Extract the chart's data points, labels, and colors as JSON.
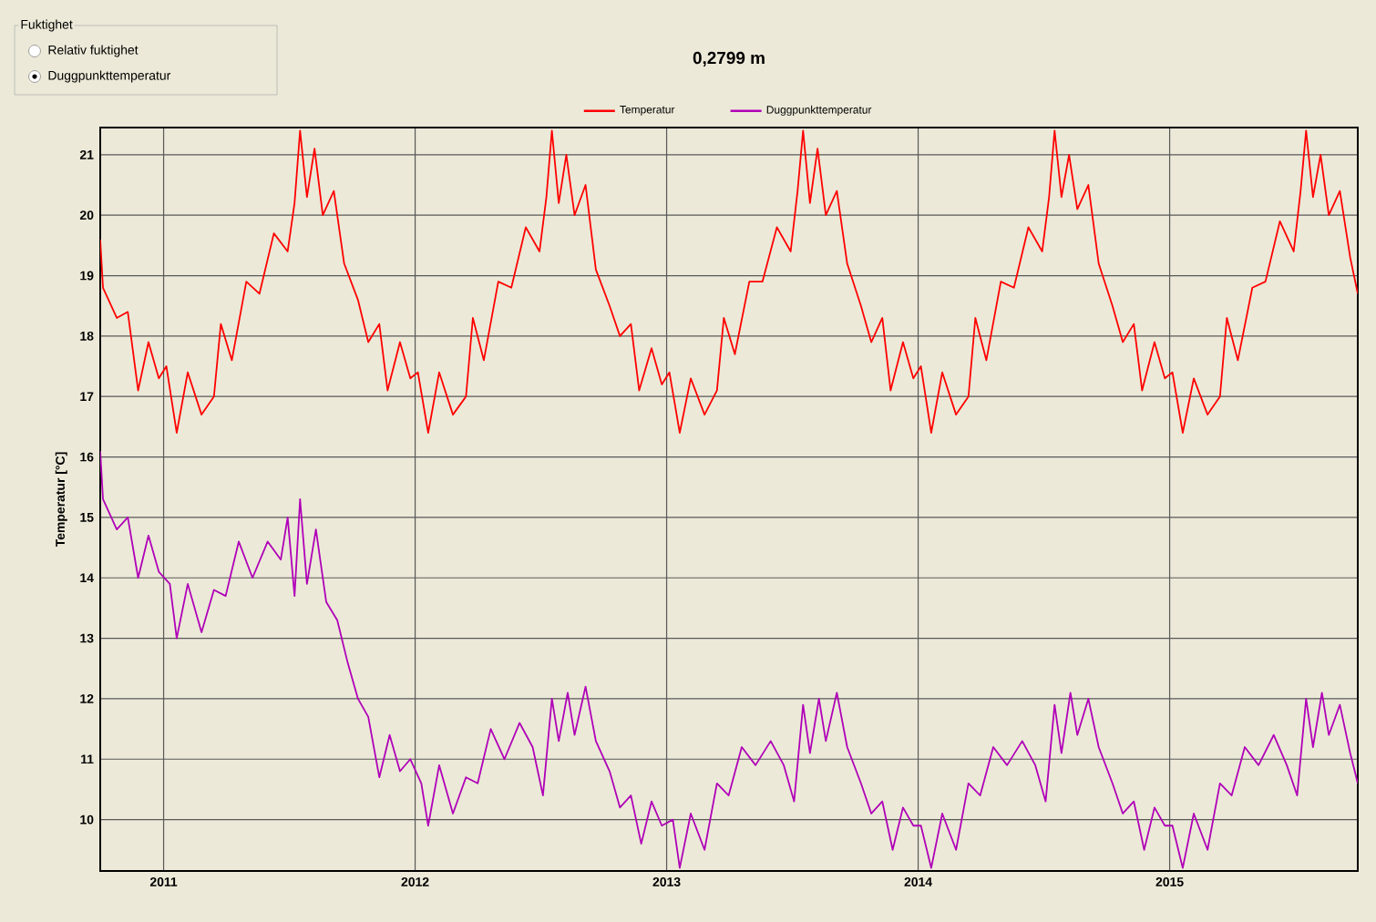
{
  "chart_data": {
    "type": "line",
    "title": "0,2799 m",
    "ylabel": "Temperatur [°C]",
    "annotations": [
      "Fuktighet",
      "Relativ fuktighet",
      "Duggpunkttemperatur"
    ],
    "xlim": [
      "2010-10-01",
      "2015-10-01"
    ],
    "xticks": [
      "2011",
      "2012",
      "2013",
      "2014",
      "2015"
    ],
    "ylim": [
      9.15,
      21.45
    ],
    "yticks": [
      10,
      11,
      12,
      13,
      14,
      15,
      16,
      17,
      18,
      19,
      20,
      21
    ],
    "grid": true,
    "legend": "top",
    "marker": "none",
    "line_style": "solid",
    "series": [
      {
        "name": "Temperatur",
        "color": "#ff0000",
        "x": [
          "2010-10-01",
          "2010-10-05",
          "2010-10-25",
          "2010-11-10",
          "2010-11-25",
          "2010-12-10",
          "2010-12-25",
          "2011-01-05",
          "2011-01-20",
          "2011-02-05",
          "2011-02-25",
          "2011-03-15",
          "2011-03-25",
          "2011-04-10",
          "2011-05-01",
          "2011-05-20",
          "2011-06-10",
          "2011-06-30",
          "2011-07-10",
          "2011-07-18",
          "2011-07-28",
          "2011-08-08",
          "2011-08-20",
          "2011-09-05",
          "2011-09-20",
          "2011-10-10",
          "2011-10-25",
          "2011-11-10",
          "2011-11-22",
          "2011-12-10",
          "2011-12-25",
          "2012-01-05",
          "2012-01-20",
          "2012-02-05",
          "2012-02-25",
          "2012-03-15",
          "2012-03-25",
          "2012-04-10",
          "2012-05-01",
          "2012-05-20",
          "2012-06-10",
          "2012-06-30",
          "2012-07-10",
          "2012-07-18",
          "2012-07-28",
          "2012-08-08",
          "2012-08-20",
          "2012-09-05",
          "2012-09-20",
          "2012-10-10",
          "2012-10-25",
          "2012-11-10",
          "2012-11-22",
          "2012-12-10",
          "2012-12-25",
          "2013-01-05",
          "2013-01-20",
          "2013-02-05",
          "2013-02-25",
          "2013-03-15",
          "2013-03-25",
          "2013-04-10",
          "2013-05-01",
          "2013-05-20",
          "2013-06-10",
          "2013-06-30",
          "2013-07-10",
          "2013-07-18",
          "2013-07-28",
          "2013-08-08",
          "2013-08-20",
          "2013-09-05",
          "2013-09-20",
          "2013-10-10",
          "2013-10-25",
          "2013-11-10",
          "2013-11-22",
          "2013-12-10",
          "2013-12-25",
          "2014-01-05",
          "2014-01-20",
          "2014-02-05",
          "2014-02-25",
          "2014-03-15",
          "2014-03-25",
          "2014-04-10",
          "2014-05-01",
          "2014-05-20",
          "2014-06-10",
          "2014-06-30",
          "2014-07-10",
          "2014-07-18",
          "2014-07-28",
          "2014-08-08",
          "2014-08-20",
          "2014-09-05",
          "2014-09-20",
          "2014-10-10",
          "2014-10-25",
          "2014-11-10",
          "2014-11-22",
          "2014-12-10",
          "2014-12-25",
          "2015-01-05",
          "2015-01-20",
          "2015-02-05",
          "2015-02-25",
          "2015-03-15",
          "2015-03-25",
          "2015-04-10",
          "2015-05-01",
          "2015-05-20",
          "2015-06-10",
          "2015-06-30",
          "2015-07-10",
          "2015-07-18",
          "2015-07-28",
          "2015-08-08",
          "2015-08-20",
          "2015-09-05",
          "2015-09-20",
          "2015-10-01"
        ],
        "values": [
          19.6,
          18.8,
          18.3,
          18.4,
          17.1,
          17.9,
          17.3,
          17.5,
          16.4,
          17.4,
          16.7,
          17.0,
          18.2,
          17.6,
          18.9,
          18.7,
          19.7,
          19.4,
          20.2,
          21.4,
          20.3,
          21.1,
          20.0,
          20.4,
          19.2,
          18.6,
          17.9,
          18.2,
          17.1,
          17.9,
          17.3,
          17.4,
          16.4,
          17.4,
          16.7,
          17.0,
          18.3,
          17.6,
          18.9,
          18.8,
          19.8,
          19.4,
          20.3,
          21.4,
          20.2,
          21.0,
          20.0,
          20.5,
          19.1,
          18.5,
          18.0,
          18.2,
          17.1,
          17.8,
          17.2,
          17.4,
          16.4,
          17.3,
          16.7,
          17.1,
          18.3,
          17.7,
          18.9,
          18.9,
          19.8,
          19.4,
          20.4,
          21.4,
          20.2,
          21.1,
          20.0,
          20.4,
          19.2,
          18.5,
          17.9,
          18.3,
          17.1,
          17.9,
          17.3,
          17.5,
          16.4,
          17.4,
          16.7,
          17.0,
          18.3,
          17.6,
          18.9,
          18.8,
          19.8,
          19.4,
          20.3,
          21.4,
          20.3,
          21.0,
          20.1,
          20.5,
          19.2,
          18.5,
          17.9,
          18.2,
          17.1,
          17.9,
          17.3,
          17.4,
          16.4,
          17.3,
          16.7,
          17.0,
          18.3,
          17.6,
          18.8,
          18.9,
          19.9,
          19.4,
          20.4,
          21.4,
          20.3,
          21.0,
          20.0,
          20.4,
          19.3,
          18.7
        ]
      },
      {
        "name": "Duggpunkttemperatur",
        "color": "#b000b8",
        "x": [
          "2010-10-01",
          "2010-10-05",
          "2010-10-25",
          "2010-11-10",
          "2010-11-25",
          "2010-12-10",
          "2010-12-25",
          "2011-01-10",
          "2011-01-20",
          "2011-02-05",
          "2011-02-25",
          "2011-03-15",
          "2011-04-01",
          "2011-04-20",
          "2011-05-10",
          "2011-06-01",
          "2011-06-20",
          "2011-06-30",
          "2011-07-10",
          "2011-07-18",
          "2011-07-28",
          "2011-08-10",
          "2011-08-25",
          "2011-09-10",
          "2011-09-25",
          "2011-10-10",
          "2011-10-25",
          "2011-11-10",
          "2011-11-25",
          "2011-12-10",
          "2011-12-25",
          "2012-01-10",
          "2012-01-20",
          "2012-02-05",
          "2012-02-25",
          "2012-03-15",
          "2012-04-01",
          "2012-04-20",
          "2012-05-10",
          "2012-06-01",
          "2012-06-20",
          "2012-07-05",
          "2012-07-18",
          "2012-07-28",
          "2012-08-10",
          "2012-08-20",
          "2012-09-05",
          "2012-09-20",
          "2012-10-10",
          "2012-10-25",
          "2012-11-10",
          "2012-11-25",
          "2012-12-10",
          "2012-12-25",
          "2013-01-10",
          "2013-01-20",
          "2013-02-05",
          "2013-02-25",
          "2013-03-15",
          "2013-04-01",
          "2013-04-20",
          "2013-05-10",
          "2013-06-01",
          "2013-06-20",
          "2013-07-05",
          "2013-07-18",
          "2013-07-28",
          "2013-08-10",
          "2013-08-20",
          "2013-09-05",
          "2013-09-20",
          "2013-10-10",
          "2013-10-25",
          "2013-11-10",
          "2013-11-25",
          "2013-12-10",
          "2013-12-25",
          "2014-01-05",
          "2014-01-20",
          "2014-02-05",
          "2014-02-25",
          "2014-03-15",
          "2014-04-01",
          "2014-04-20",
          "2014-05-10",
          "2014-06-01",
          "2014-06-20",
          "2014-07-05",
          "2014-07-18",
          "2014-07-28",
          "2014-08-10",
          "2014-08-20",
          "2014-09-05",
          "2014-09-20",
          "2014-10-10",
          "2014-10-25",
          "2014-11-10",
          "2014-11-25",
          "2014-12-10",
          "2014-12-25",
          "2015-01-05",
          "2015-01-20",
          "2015-02-05",
          "2015-02-25",
          "2015-03-15",
          "2015-04-01",
          "2015-04-20",
          "2015-05-10",
          "2015-06-01",
          "2015-06-20",
          "2015-07-05",
          "2015-07-18",
          "2015-07-28",
          "2015-08-10",
          "2015-08-20",
          "2015-09-05",
          "2015-09-20",
          "2015-10-01"
        ],
        "values": [
          16.1,
          15.3,
          14.8,
          15.0,
          14.0,
          14.7,
          14.1,
          13.9,
          13.0,
          13.9,
          13.1,
          13.8,
          13.7,
          14.6,
          14.0,
          14.6,
          14.3,
          15.0,
          13.7,
          15.3,
          13.9,
          14.8,
          13.6,
          13.3,
          12.6,
          12.0,
          11.7,
          10.7,
          11.4,
          10.8,
          11.0,
          10.6,
          9.9,
          10.9,
          10.1,
          10.7,
          10.6,
          11.5,
          11.0,
          11.6,
          11.2,
          10.4,
          12.0,
          11.3,
          12.1,
          11.4,
          12.2,
          11.3,
          10.8,
          10.2,
          10.4,
          9.6,
          10.3,
          9.9,
          10.0,
          9.2,
          10.1,
          9.5,
          10.6,
          10.4,
          11.2,
          10.9,
          11.3,
          10.9,
          10.3,
          11.9,
          11.1,
          12.0,
          11.3,
          12.1,
          11.2,
          10.6,
          10.1,
          10.3,
          9.5,
          10.2,
          9.9,
          9.9,
          9.2,
          10.1,
          9.5,
          10.6,
          10.4,
          11.2,
          10.9,
          11.3,
          10.9,
          10.3,
          11.9,
          11.1,
          12.1,
          11.4,
          12.0,
          11.2,
          10.6,
          10.1,
          10.3,
          9.5,
          10.2,
          9.9,
          9.9,
          9.2,
          10.1,
          9.5,
          10.6,
          10.4,
          11.2,
          10.9,
          11.4,
          10.9,
          10.4,
          12.0,
          11.2,
          12.1,
          11.4,
          11.9,
          11.1,
          10.6
        ]
      }
    ]
  }
}
